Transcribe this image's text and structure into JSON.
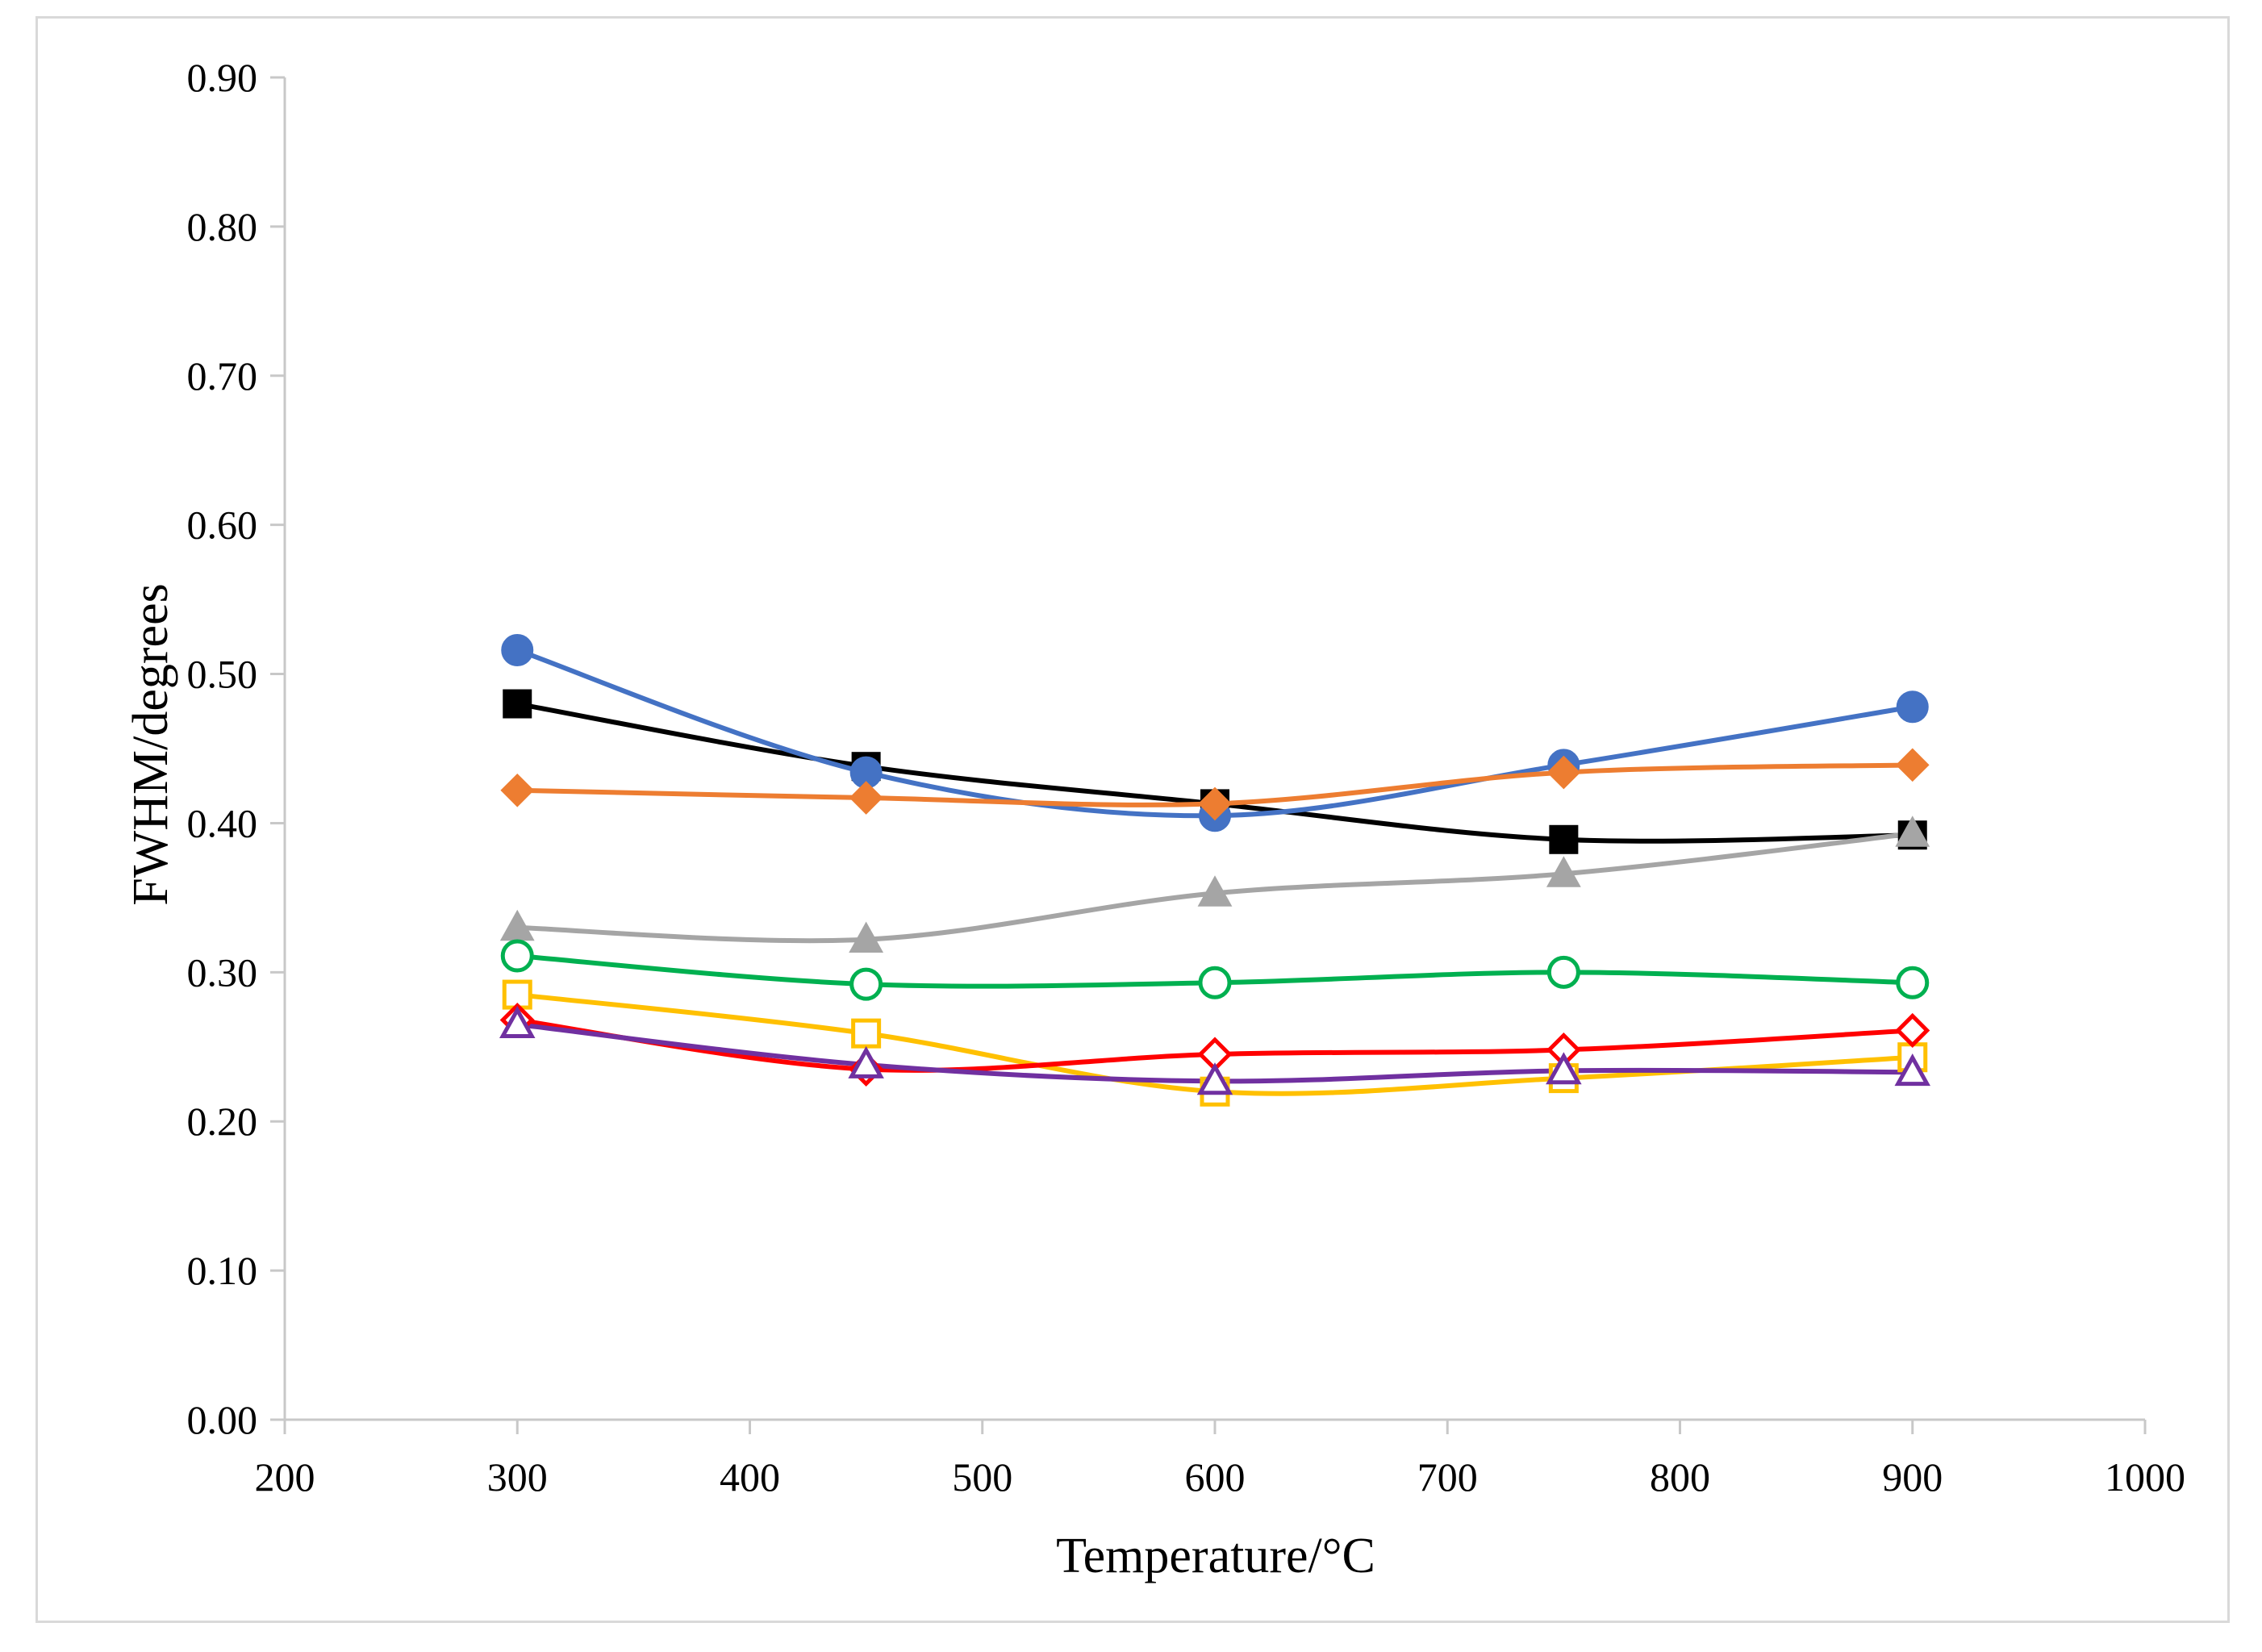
{
  "chart_data": {
    "type": "line",
    "title": "",
    "xlabel": "Temperature/°C",
    "ylabel": "FWHM/degrees",
    "xlim": [
      200,
      1000
    ],
    "ylim": [
      0.0,
      0.9
    ],
    "x_ticks": [
      200,
      300,
      400,
      500,
      600,
      700,
      800,
      900,
      1000
    ],
    "x_tick_labels": [
      "200",
      "300",
      "400",
      "500",
      "600",
      "700",
      "800",
      "900",
      "1000"
    ],
    "y_ticks": [
      0.0,
      0.1,
      0.2,
      0.3,
      0.4,
      0.5,
      0.6,
      0.7,
      0.8,
      0.9
    ],
    "y_tick_labels": [
      "0.00",
      "0.10",
      "0.20",
      "0.30",
      "0.40",
      "0.50",
      "0.60",
      "0.70",
      "0.80",
      "0.90"
    ],
    "grid": false,
    "legend": "none",
    "x": [
      300,
      450,
      600,
      750,
      900
    ],
    "series": [
      {
        "name": "black-filled-square",
        "color": "#000000",
        "marker": "square",
        "filled": true,
        "values": [
          0.48,
          0.438,
          0.413,
          0.389,
          0.392
        ]
      },
      {
        "name": "blue-filled-circle",
        "color": "#4472c4",
        "marker": "circle",
        "filled": true,
        "values": [
          0.516,
          0.434,
          0.405,
          0.439,
          0.478
        ]
      },
      {
        "name": "orange-filled-diamond",
        "color": "#ed7d31",
        "marker": "diamond",
        "filled": true,
        "values": [
          0.422,
          0.417,
          0.413,
          0.434,
          0.439
        ]
      },
      {
        "name": "gray-filled-triangle",
        "color": "#a5a5a5",
        "marker": "triangle",
        "filled": true,
        "values": [
          0.33,
          0.322,
          0.353,
          0.366,
          0.393
        ]
      },
      {
        "name": "green-open-circle",
        "color": "#00b050",
        "marker": "circle",
        "filled": false,
        "values": [
          0.311,
          0.292,
          0.293,
          0.3,
          0.293
        ]
      },
      {
        "name": "yellow-open-square",
        "color": "#ffc000",
        "marker": "square",
        "filled": false,
        "values": [
          0.285,
          0.259,
          0.22,
          0.229,
          0.243
        ]
      },
      {
        "name": "red-open-diamond",
        "color": "#ff0000",
        "marker": "diamond",
        "filled": false,
        "values": [
          0.268,
          0.235,
          0.245,
          0.248,
          0.261
        ]
      },
      {
        "name": "purple-open-triangle",
        "color": "#7030a0",
        "marker": "triangle",
        "filled": false,
        "values": [
          0.265,
          0.238,
          0.227,
          0.234,
          0.233
        ]
      }
    ]
  }
}
